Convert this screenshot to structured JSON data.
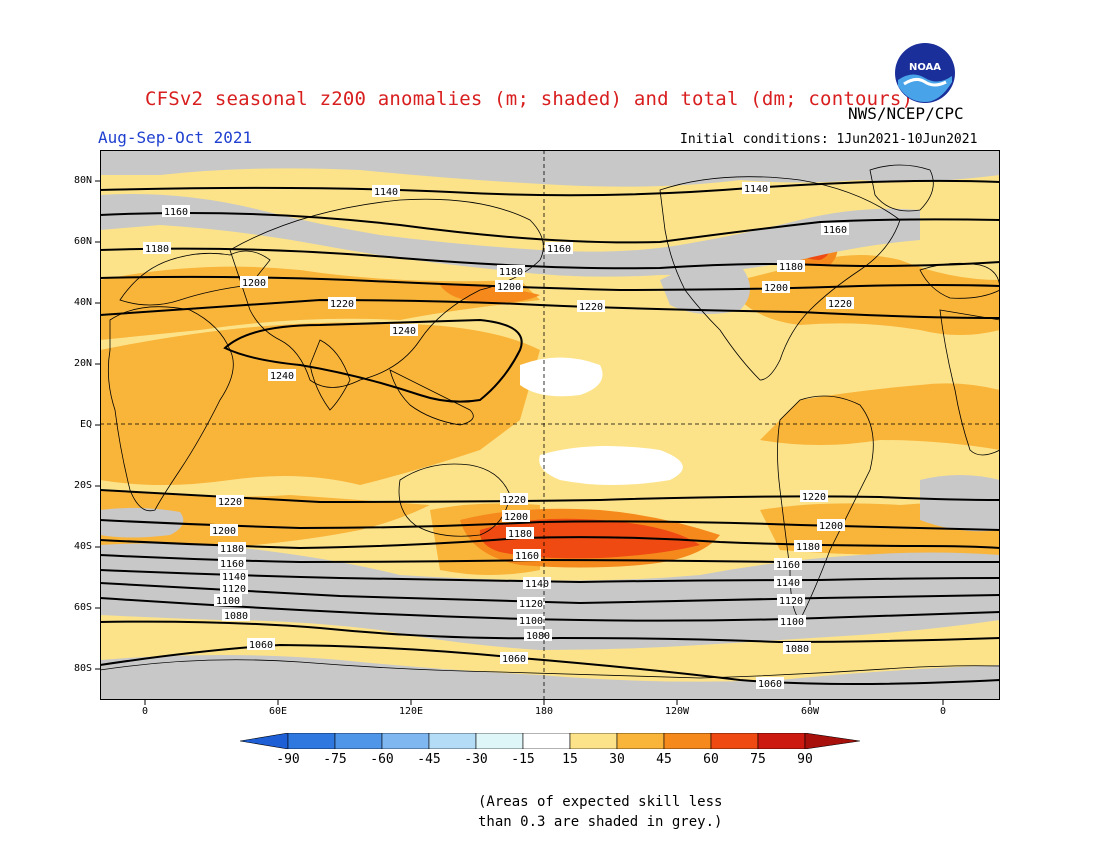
{
  "header": {
    "title": "CFSv2 seasonal z200 anomalies (m; shaded) and total (dm; contours)",
    "season": "Aug-Sep-Oct 2021",
    "agency": "NWS/NCEP/CPC",
    "initial_conditions": "Initial conditions: 1Jun2021-10Jun2021",
    "logo_text": "NOAA"
  },
  "axes": {
    "lat_labels": [
      "80N",
      "60N",
      "40N",
      "20N",
      "EQ",
      "20S",
      "40S",
      "60S",
      "80S"
    ],
    "lon_labels": [
      "0",
      "60E",
      "120E",
      "180",
      "120W",
      "60W",
      "0"
    ]
  },
  "contours": [
    {
      "label": "1140"
    },
    {
      "label": "1160"
    },
    {
      "label": "1180"
    },
    {
      "label": "1200"
    },
    {
      "label": "1220"
    },
    {
      "label": "1240"
    },
    {
      "label": "1060"
    },
    {
      "label": "1080"
    },
    {
      "label": "1100"
    },
    {
      "label": "1120"
    }
  ],
  "colorbar": {
    "labels": [
      "-90",
      "-75",
      "-60",
      "-45",
      "-30",
      "-15",
      "15",
      "30",
      "45",
      "60",
      "75",
      "90"
    ],
    "colors": [
      "#1e5fd6",
      "#2f78e0",
      "#4f95e8",
      "#7fb7f0",
      "#b4dcf6",
      "#dff6f8",
      "#ffffff",
      "#fce38a",
      "#f9b43a",
      "#f5891c",
      "#ee4a12",
      "#cc1a10",
      "#a8100c"
    ]
  },
  "palette": {
    "grey": "#c8c8c8",
    "light_yellow": "#fce38a",
    "orange_light": "#f9c04a",
    "orange": "#f5a623",
    "dark_orange": "#f07218",
    "red": "#ea3f12"
  },
  "note": {
    "line1": "(Areas of expected skill less",
    "line2": "than 0.3 are shaded in grey.)"
  }
}
